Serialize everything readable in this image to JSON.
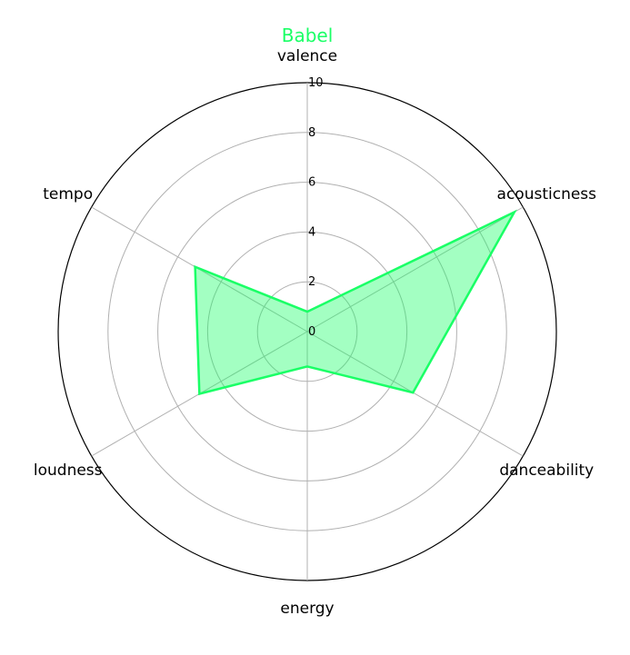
{
  "chart_data": {
    "type": "radar",
    "title": "Babel",
    "axes": [
      "valence",
      "acousticness",
      "danceability",
      "energy",
      "loudness",
      "tempo"
    ],
    "series": [
      {
        "name": "",
        "values": [
          0.8,
          9.6,
          4.9,
          1.4,
          5.0,
          5.2
        ]
      }
    ],
    "rlim": [
      0,
      10
    ],
    "ticks": [
      0,
      2,
      4,
      6,
      8,
      10
    ],
    "grid": true,
    "colors": {
      "series": "#1aff66",
      "fill": "#a0f5c0",
      "grid": "#b0b0b0",
      "outer": "#000000"
    }
  }
}
